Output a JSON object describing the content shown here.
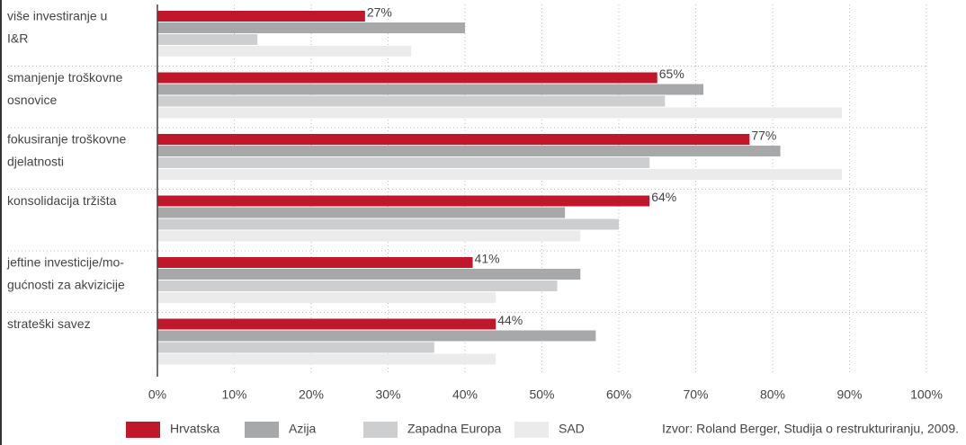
{
  "chart_data": {
    "type": "bar",
    "orientation": "horizontal",
    "categories": [
      [
        "više investiranje u",
        "I&R"
      ],
      [
        "smanjenje troškovne",
        "osnovice"
      ],
      [
        "fokusiranje troškovne",
        "djelatnosti"
      ],
      [
        "konsolidacija tržišta"
      ],
      [
        "jeftine investicije/mo-",
        "gućnosti za akvizicije"
      ],
      [
        "strateški savez"
      ]
    ],
    "series": [
      {
        "name": "Hrvatska",
        "color": "#c0182a",
        "values": [
          27,
          65,
          77,
          64,
          41,
          44
        ],
        "value_labels": [
          "27%",
          "65%",
          "77%",
          "64%",
          "41%",
          "44%"
        ]
      },
      {
        "name": "Azija",
        "color": "#a7a8aa",
        "values": [
          40,
          71,
          81,
          53,
          55,
          57
        ]
      },
      {
        "name": "Zapadna Europa",
        "color": "#cdcecf",
        "values": [
          13,
          66,
          64,
          60,
          52,
          36
        ]
      },
      {
        "name": "SAD",
        "color": "#ebebec",
        "values": [
          33,
          89,
          89,
          55,
          44,
          44
        ]
      }
    ],
    "xlim": [
      0,
      100
    ],
    "xticks": [
      {
        "value": 0,
        "label": "0%"
      },
      {
        "value": 10,
        "label": "10%"
      },
      {
        "value": 20,
        "label": "20%"
      },
      {
        "value": 30,
        "label": "30%"
      },
      {
        "value": 40,
        "label": "40%"
      },
      {
        "value": 50,
        "label": "50%"
      },
      {
        "value": 60,
        "label": "60%"
      },
      {
        "value": 70,
        "label": "70%"
      },
      {
        "value": 80,
        "label": "80%"
      },
      {
        "value": 90,
        "label": "90%"
      },
      {
        "value": 100,
        "label": "100%"
      }
    ],
    "grid": true,
    "source": "Izvor: Roland Berger, Studija o restrukturiranju, 2009."
  }
}
